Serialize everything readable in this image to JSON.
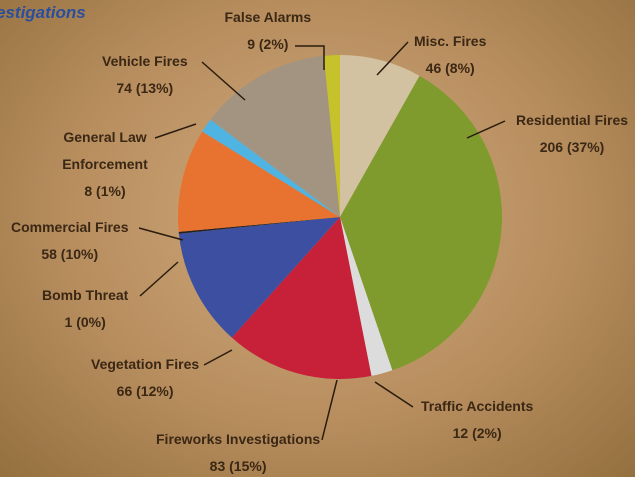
{
  "chart_data": {
    "type": "pie",
    "title": "estigations",
    "categories": [
      "Misc. Fires",
      "Residential Fires",
      "Traffic Accidents",
      "Fireworks Investigations",
      "Vegetation Fires",
      "Bomb Threat",
      "Commercial Fires",
      "General Law Enforcement",
      "Vehicle Fires",
      "False Alarms"
    ],
    "values": [
      46,
      206,
      12,
      83,
      66,
      1,
      58,
      8,
      74,
      9
    ],
    "value_labels": [
      "46 (8%)",
      "206 (37%)",
      "12 (2%)",
      "83 (15%)",
      "66 (12%)",
      "1 (0%)",
      "58 (10%)",
      "8 (1%)",
      "74 (13%)",
      "9 (2%)"
    ],
    "colors": [
      "#d3c2a2",
      "#7f9b2d",
      "#dcdcdc",
      "#c7213a",
      "#3c4fa0",
      "#222222",
      "#e8722f",
      "#4fb4e2",
      "#a39482",
      "#c5c22b"
    ]
  }
}
